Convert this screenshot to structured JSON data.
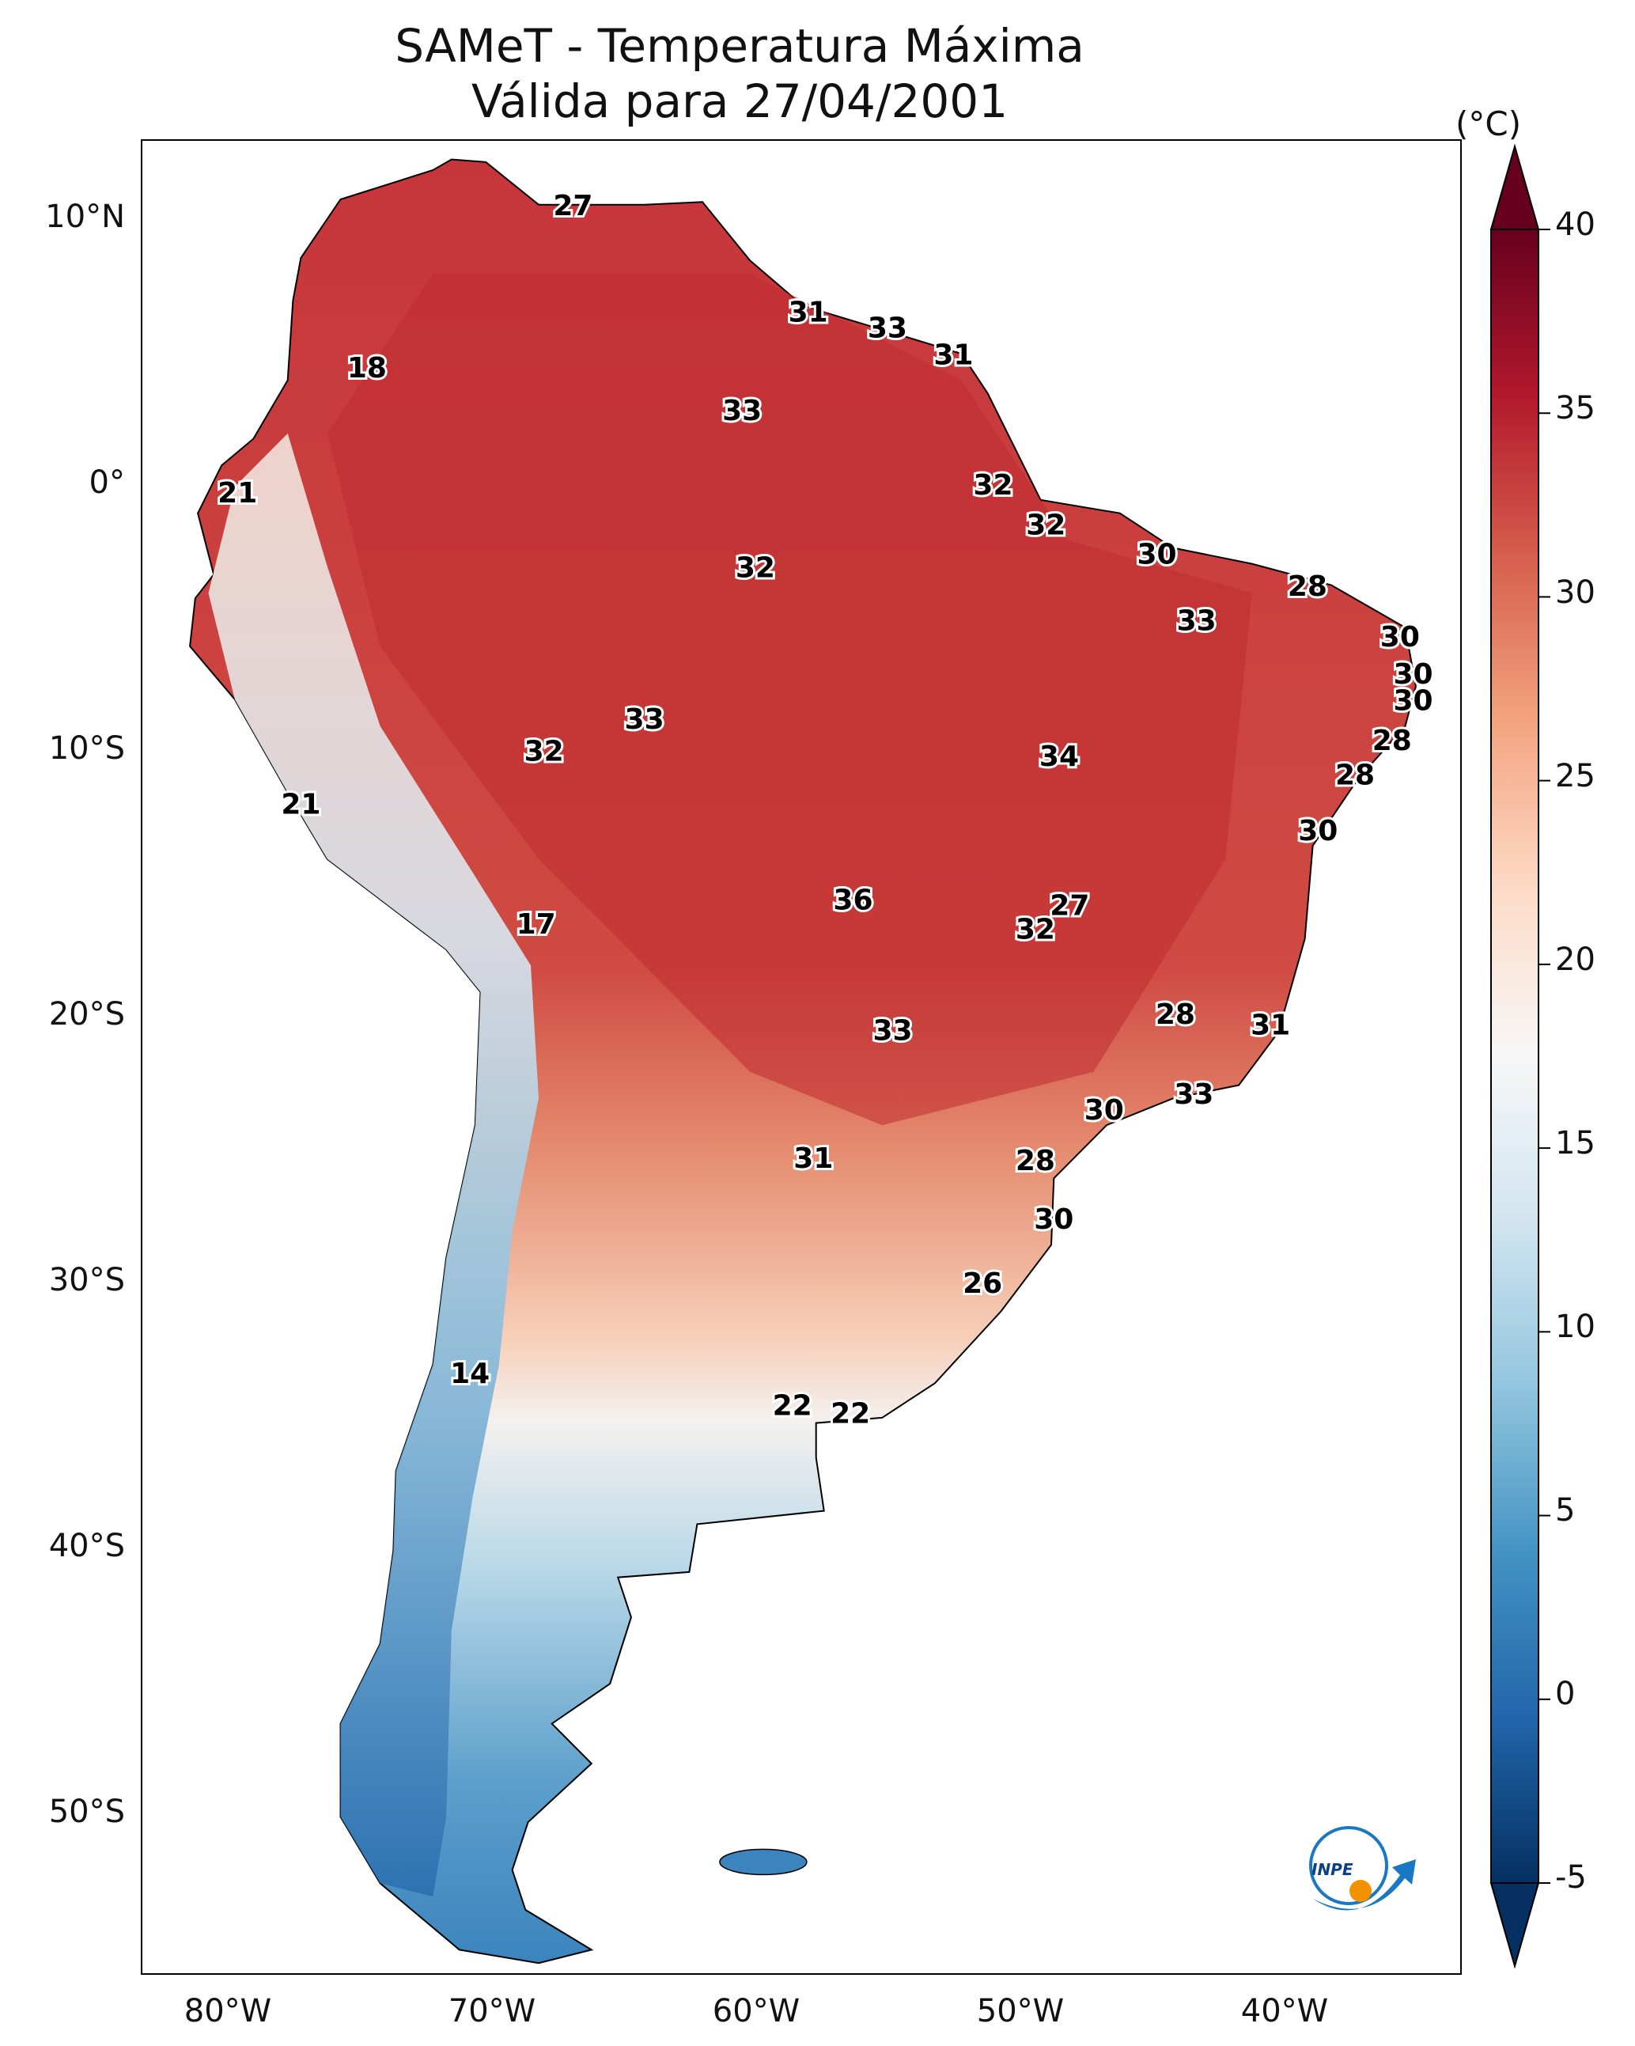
{
  "title": {
    "line1": "SAMeT - Temperatura Máxima",
    "line2": "Válida para 27/04/2001"
  },
  "map": {
    "lon_range": [
      -83,
      -33
    ],
    "lat_range": [
      -56,
      13
    ],
    "lat_ticks": [
      "10°N",
      "0°",
      "10°S",
      "20°S",
      "30°S",
      "40°S",
      "50°S"
    ],
    "lon_ticks": [
      "80°W",
      "70°W",
      "60°W",
      "50°W",
      "40°W"
    ]
  },
  "colorbar": {
    "unit": "(°C)",
    "min": -5,
    "max": 40,
    "ticks": [
      "40",
      "35",
      "30",
      "25",
      "20",
      "15",
      "10",
      "5",
      "0",
      "-5"
    ],
    "colors": [
      "#053061",
      "#2166ac",
      "#4393c3",
      "#92c5de",
      "#d1e5f0",
      "#f7f7f7",
      "#fddbc7",
      "#f4a582",
      "#d6604d",
      "#b2182b",
      "#67001f"
    ]
  },
  "station_labels": [
    {
      "text": "27",
      "lon": -66.7,
      "lat": 10.5
    },
    {
      "text": "31",
      "lon": -57.8,
      "lat": 6.5
    },
    {
      "text": "33",
      "lon": -54.8,
      "lat": 5.9
    },
    {
      "text": "31",
      "lon": -52.3,
      "lat": 4.9
    },
    {
      "text": "18",
      "lon": -74.5,
      "lat": 4.4
    },
    {
      "text": "33",
      "lon": -60.3,
      "lat": 2.8
    },
    {
      "text": "32",
      "lon": -50.8,
      "lat": 0.0
    },
    {
      "text": "21",
      "lon": -79.4,
      "lat": -0.3
    },
    {
      "text": "32",
      "lon": -48.8,
      "lat": -1.5
    },
    {
      "text": "30",
      "lon": -44.6,
      "lat": -2.6
    },
    {
      "text": "32",
      "lon": -59.8,
      "lat": -3.1
    },
    {
      "text": "28",
      "lon": -38.9,
      "lat": -3.8
    },
    {
      "text": "33",
      "lon": -43.1,
      "lat": -5.1
    },
    {
      "text": "30",
      "lon": -35.4,
      "lat": -5.7
    },
    {
      "text": "30",
      "lon": -34.9,
      "lat": -7.1
    },
    {
      "text": "30",
      "lon": -34.9,
      "lat": -8.1
    },
    {
      "text": "33",
      "lon": -64.0,
      "lat": -8.8
    },
    {
      "text": "32",
      "lon": -67.8,
      "lat": -10.0
    },
    {
      "text": "28",
      "lon": -35.7,
      "lat": -9.6
    },
    {
      "text": "34",
      "lon": -48.3,
      "lat": -10.2
    },
    {
      "text": "28",
      "lon": -37.1,
      "lat": -10.9
    },
    {
      "text": "21",
      "lon": -77.0,
      "lat": -12.0
    },
    {
      "text": "30",
      "lon": -38.5,
      "lat": -13.0
    },
    {
      "text": "36",
      "lon": -56.1,
      "lat": -15.6
    },
    {
      "text": "27",
      "lon": -47.9,
      "lat": -15.8
    },
    {
      "text": "17",
      "lon": -68.1,
      "lat": -16.5
    },
    {
      "text": "32",
      "lon": -49.2,
      "lat": -16.7
    },
    {
      "text": "28",
      "lon": -43.9,
      "lat": -19.9
    },
    {
      "text": "31",
      "lon": -40.3,
      "lat": -20.3
    },
    {
      "text": "33",
      "lon": -54.6,
      "lat": -20.5
    },
    {
      "text": "33",
      "lon": -43.2,
      "lat": -22.9
    },
    {
      "text": "30",
      "lon": -46.6,
      "lat": -23.5
    },
    {
      "text": "31",
      "lon": -57.6,
      "lat": -25.3
    },
    {
      "text": "28",
      "lon": -49.2,
      "lat": -25.4
    },
    {
      "text": "30",
      "lon": -48.5,
      "lat": -27.6
    },
    {
      "text": "26",
      "lon": -51.2,
      "lat": -30.0
    },
    {
      "text": "14",
      "lon": -70.6,
      "lat": -33.4
    },
    {
      "text": "22",
      "lon": -58.4,
      "lat": -34.6
    },
    {
      "text": "22",
      "lon": -56.2,
      "lat": -34.9
    }
  ],
  "logo": {
    "text": "INPE"
  }
}
